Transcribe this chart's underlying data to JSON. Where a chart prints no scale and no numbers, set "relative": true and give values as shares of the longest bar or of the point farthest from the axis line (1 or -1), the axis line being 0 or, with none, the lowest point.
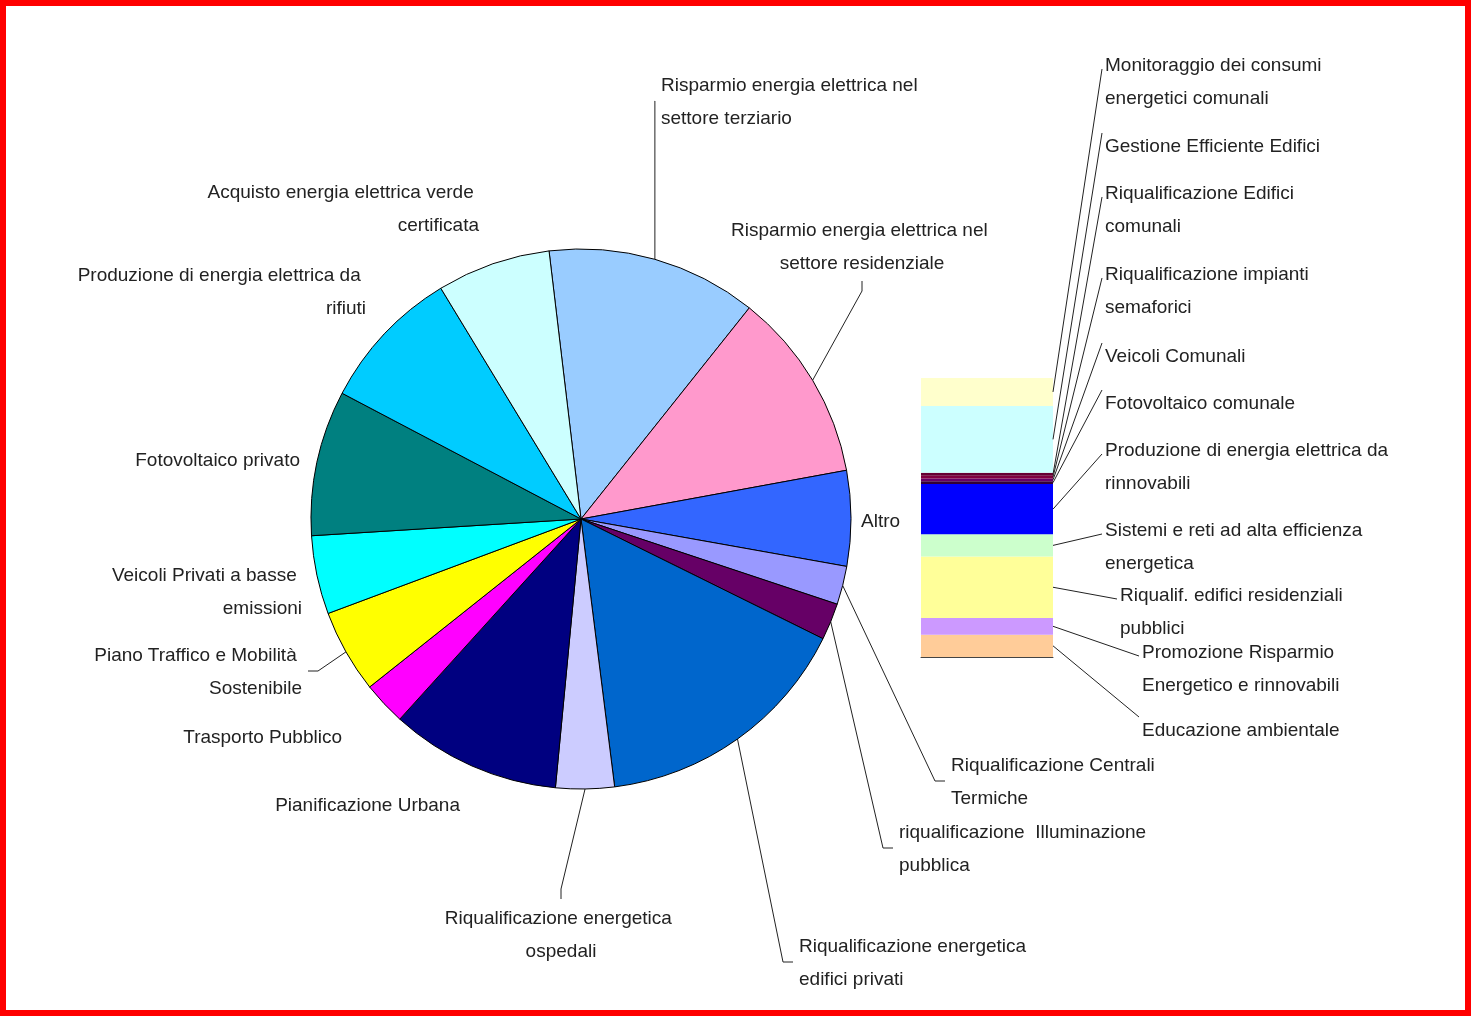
{
  "chart_data": [
    {
      "type": "pie",
      "categories": [
        "Risparmio energia elettrica nel settore terziario",
        "Risparmio energia elettrica nel settore residenziale",
        "Altro",
        "Riqualificazione Centrali Termiche",
        "riqualificazione  Illuminazione pubblica",
        "Riqualificazione energetica edifici privati",
        "Riqualificazione energetica ospedali",
        "Pianificazione Urbana",
        "Trasporto Pubblico",
        "Piano Traffico e Mobilità Sostenibile",
        "Veicoli Privati a basse emissioni",
        "Fotovoltaico privato",
        "Produzione di energia elettrica da rifiuti",
        "Acquisto energia elettrica verde certificata"
      ],
      "values": [
        12.6,
        11.4,
        5.7,
        2.3,
        2.2,
        15.7,
        3.5,
        10.2,
        2.6,
        5.0,
        4.7,
        8.7,
        8.6,
        6.8
      ],
      "colors": [
        "#99ccff",
        "#ff99cc",
        "#3366ff",
        "#9999ff",
        "#660066",
        "#0066cc",
        "#ccccff",
        "#000080",
        "#ff00ff",
        "#ffff00",
        "#00ffff",
        "#008080",
        "#00ccff",
        "#ccffff"
      ]
    },
    {
      "type": "bar",
      "stacked": true,
      "relative": true,
      "categories": [
        null
      ],
      "series": [
        {
          "name": "Educazione ambientale",
          "color": "#ffcc99",
          "values": [
            0.08
          ]
        },
        {
          "name": "Promozione Risparmio Energetico e rinnovabili",
          "color": "#cc99ff",
          "values": [
            0.06
          ]
        },
        {
          "name": "Riqualif. edifici residenziali pubblici",
          "color": "#ffff99",
          "values": [
            0.22
          ]
        },
        {
          "name": "Sistemi e reti ad alta efficienza energetica",
          "color": "#ccffcc",
          "values": [
            0.08
          ]
        },
        {
          "name": "Produzione di energia elettrica da rinnovabili",
          "color": "#0000ff",
          "values": [
            0.18
          ]
        },
        {
          "name": "Fotovoltaico comunale",
          "color": "#330033",
          "values": [
            0.01
          ]
        },
        {
          "name": "Veicoli Comunali",
          "color": "#660066",
          "values": [
            0.01
          ]
        },
        {
          "name": "Riqualificazione impianti semaforici",
          "color": "#800040",
          "values": [
            0.01
          ]
        },
        {
          "name": "Riqualificazione Edifici comunali",
          "color": "#660033",
          "values": [
            0.01
          ]
        },
        {
          "name": "Gestione Efficiente Edifici",
          "color": "#ccffff",
          "values": [
            0.24
          ]
        },
        {
          "name": "Monitoraggio dei consumi energetici comunali",
          "color": "#ffffcc",
          "values": [
            0.1
          ]
        }
      ]
    }
  ]
}
